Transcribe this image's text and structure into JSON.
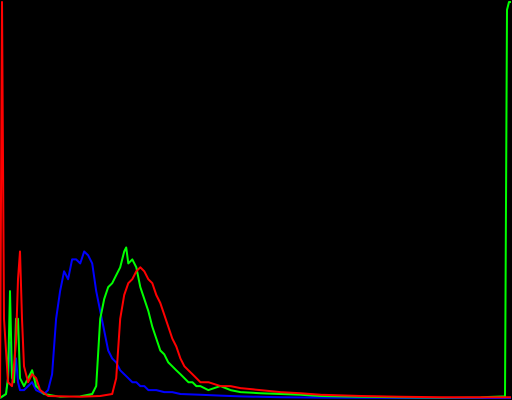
{
  "chart_data": {
    "type": "line",
    "title": "",
    "xlabel": "",
    "ylabel": "",
    "grid": false,
    "legend": "none",
    "xlim": [
      0,
      255
    ],
    "ylim": [
      0,
      1
    ],
    "background": "#000000",
    "series": [
      {
        "color": "#0000ff",
        "points": [
          [
            0,
            0.0
          ],
          [
            3,
            0.01
          ],
          [
            4,
            0.05
          ],
          [
            5,
            0.14
          ],
          [
            6,
            0.06
          ],
          [
            7,
            0.04
          ],
          [
            8,
            0.1
          ],
          [
            9,
            0.04
          ],
          [
            10,
            0.02
          ],
          [
            12,
            0.02
          ],
          [
            14,
            0.03
          ],
          [
            16,
            0.04
          ],
          [
            18,
            0.02
          ],
          [
            22,
            0.01
          ],
          [
            24,
            0.02
          ],
          [
            26,
            0.06
          ],
          [
            28,
            0.2
          ],
          [
            30,
            0.27
          ],
          [
            32,
            0.32
          ],
          [
            34,
            0.3
          ],
          [
            36,
            0.35
          ],
          [
            38,
            0.35
          ],
          [
            40,
            0.34
          ],
          [
            42,
            0.37
          ],
          [
            44,
            0.36
          ],
          [
            46,
            0.34
          ],
          [
            48,
            0.27
          ],
          [
            50,
            0.22
          ],
          [
            52,
            0.17
          ],
          [
            54,
            0.12
          ],
          [
            56,
            0.1
          ],
          [
            58,
            0.09
          ],
          [
            60,
            0.07
          ],
          [
            62,
            0.06
          ],
          [
            64,
            0.05
          ],
          [
            66,
            0.04
          ],
          [
            68,
            0.04
          ],
          [
            70,
            0.03
          ],
          [
            72,
            0.03
          ],
          [
            74,
            0.02
          ],
          [
            78,
            0.02
          ],
          [
            82,
            0.015
          ],
          [
            86,
            0.015
          ],
          [
            90,
            0.01
          ],
          [
            100,
            0.008
          ],
          [
            110,
            0.006
          ],
          [
            120,
            0.004
          ],
          [
            140,
            0.002
          ],
          [
            160,
            0.001
          ],
          [
            200,
            0.0
          ],
          [
            255,
            0.0
          ]
        ]
      },
      {
        "color": "#00ff00",
        "points": [
          [
            0,
            0.0
          ],
          [
            3,
            0.01
          ],
          [
            4,
            0.05
          ],
          [
            5,
            0.27
          ],
          [
            6,
            0.05
          ],
          [
            7,
            0.04
          ],
          [
            8,
            0.2
          ],
          [
            9,
            0.2
          ],
          [
            10,
            0.05
          ],
          [
            12,
            0.03
          ],
          [
            14,
            0.05
          ],
          [
            16,
            0.07
          ],
          [
            18,
            0.03
          ],
          [
            22,
            0.01
          ],
          [
            30,
            0.003
          ],
          [
            40,
            0.004
          ],
          [
            46,
            0.01
          ],
          [
            48,
            0.03
          ],
          [
            50,
            0.2
          ],
          [
            52,
            0.25
          ],
          [
            54,
            0.28
          ],
          [
            56,
            0.29
          ],
          [
            58,
            0.31
          ],
          [
            60,
            0.33
          ],
          [
            62,
            0.37
          ],
          [
            63,
            0.38
          ],
          [
            64,
            0.34
          ],
          [
            66,
            0.35
          ],
          [
            68,
            0.33
          ],
          [
            70,
            0.28
          ],
          [
            72,
            0.25
          ],
          [
            74,
            0.22
          ],
          [
            76,
            0.18
          ],
          [
            78,
            0.15
          ],
          [
            80,
            0.12
          ],
          [
            82,
            0.11
          ],
          [
            84,
            0.09
          ],
          [
            86,
            0.08
          ],
          [
            88,
            0.07
          ],
          [
            90,
            0.06
          ],
          [
            92,
            0.05
          ],
          [
            94,
            0.04
          ],
          [
            96,
            0.04
          ],
          [
            98,
            0.03
          ],
          [
            100,
            0.03
          ],
          [
            104,
            0.02
          ],
          [
            110,
            0.03
          ],
          [
            115,
            0.02
          ],
          [
            120,
            0.015
          ],
          [
            130,
            0.012
          ],
          [
            140,
            0.01
          ],
          [
            150,
            0.008
          ],
          [
            160,
            0.005
          ],
          [
            180,
            0.003
          ],
          [
            200,
            0.002
          ],
          [
            220,
            0.001
          ],
          [
            240,
            0.002
          ],
          [
            252,
            0.004
          ],
          [
            253,
            0.98
          ],
          [
            254,
            1.0
          ],
          [
            255,
            1.0
          ]
        ]
      },
      {
        "color": "#ff0000",
        "points": [
          [
            0,
            0.0
          ],
          [
            1,
            1.0
          ],
          [
            2,
            0.2
          ],
          [
            4,
            0.04
          ],
          [
            6,
            0.03
          ],
          [
            8,
            0.14
          ],
          [
            9,
            0.3
          ],
          [
            10,
            0.37
          ],
          [
            11,
            0.2
          ],
          [
            12,
            0.08
          ],
          [
            14,
            0.04
          ],
          [
            16,
            0.06
          ],
          [
            18,
            0.05
          ],
          [
            20,
            0.02
          ],
          [
            24,
            0.005
          ],
          [
            40,
            0.003
          ],
          [
            50,
            0.005
          ],
          [
            56,
            0.01
          ],
          [
            58,
            0.05
          ],
          [
            60,
            0.2
          ],
          [
            62,
            0.26
          ],
          [
            64,
            0.29
          ],
          [
            66,
            0.3
          ],
          [
            68,
            0.32
          ],
          [
            70,
            0.33
          ],
          [
            72,
            0.32
          ],
          [
            74,
            0.3
          ],
          [
            76,
            0.29
          ],
          [
            78,
            0.26
          ],
          [
            80,
            0.24
          ],
          [
            82,
            0.21
          ],
          [
            84,
            0.18
          ],
          [
            86,
            0.15
          ],
          [
            88,
            0.13
          ],
          [
            90,
            0.1
          ],
          [
            92,
            0.08
          ],
          [
            94,
            0.07
          ],
          [
            96,
            0.06
          ],
          [
            98,
            0.05
          ],
          [
            100,
            0.04
          ],
          [
            104,
            0.04
          ],
          [
            110,
            0.03
          ],
          [
            115,
            0.03
          ],
          [
            120,
            0.025
          ],
          [
            130,
            0.02
          ],
          [
            140,
            0.015
          ],
          [
            150,
            0.012
          ],
          [
            160,
            0.008
          ],
          [
            180,
            0.005
          ],
          [
            200,
            0.003
          ],
          [
            220,
            0.002
          ],
          [
            240,
            0.002
          ],
          [
            255,
            0.002
          ]
        ]
      }
    ]
  }
}
